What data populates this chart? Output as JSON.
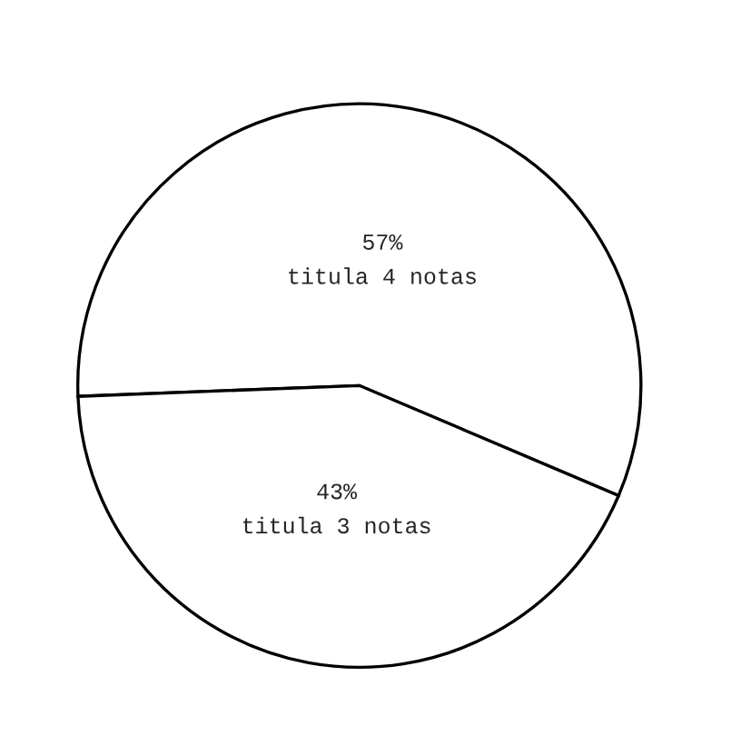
{
  "chart_data": {
    "type": "pie",
    "categories": [
      "titula 4 notas",
      "titula 3 notas"
    ],
    "values": [
      57,
      43
    ],
    "value_labels": [
      "57%",
      "43%"
    ],
    "colors": [
      "#ffffff",
      "#ffffff"
    ]
  }
}
